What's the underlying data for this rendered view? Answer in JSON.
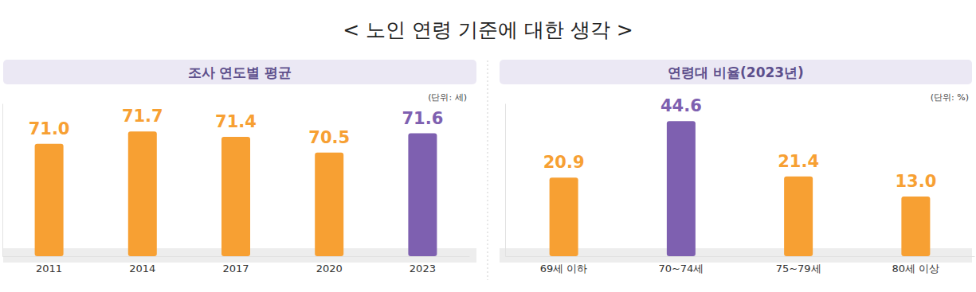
{
  "title": "< 노인 연령 기준에 대한 생각 >",
  "chart_data": [
    {
      "type": "bar",
      "title": "조사 연도별 평균",
      "annotations": [
        "(단위: 세)"
      ],
      "categories": [
        "2011",
        "2014",
        "2017",
        "2020",
        "2023"
      ],
      "values": [
        71.0,
        71.7,
        71.4,
        70.5,
        71.6
      ],
      "value_labels": [
        "71.0",
        "71.7",
        "71.4",
        "70.5",
        "71.6"
      ],
      "colors": [
        "#f7a033",
        "#f7a033",
        "#f7a033",
        "#f7a033",
        "#7e60b0"
      ],
      "ylim": [
        64.6,
        73.3
      ],
      "grid": false,
      "data_labels": true,
      "tick_labels": "x"
    },
    {
      "type": "bar",
      "title": "연령대 비율(2023년)",
      "annotations": [
        "(단위: %)"
      ],
      "categories": [
        "69세 이하",
        "70~74세",
        "75~79세",
        "80세 이상"
      ],
      "values": [
        20.9,
        44.6,
        21.4,
        13.0
      ],
      "value_labels": [
        "20.9",
        "44.6",
        "21.4",
        "13.0"
      ],
      "colors": [
        "#f7a033",
        "#7e60b0",
        "#f7a033",
        "#f7a033"
      ],
      "ylim": [
        -12,
        52
      ],
      "grid": false,
      "data_labels": true,
      "tick_labels": "x"
    }
  ]
}
